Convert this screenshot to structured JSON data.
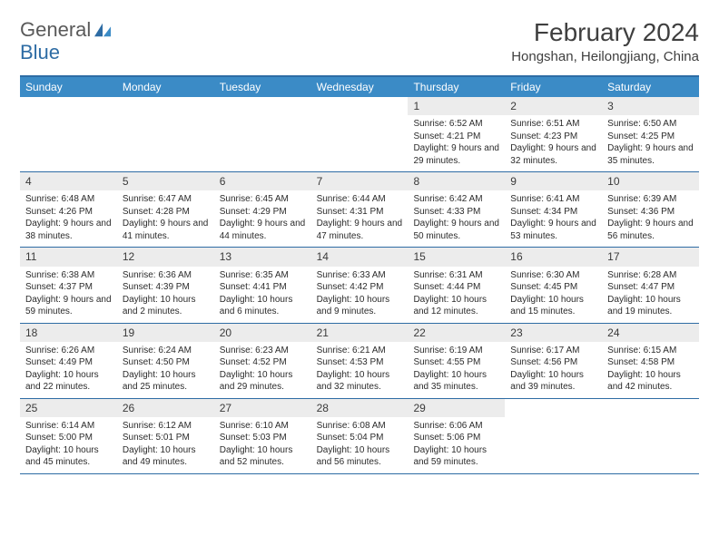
{
  "logo": {
    "word1": "General",
    "word2": "Blue"
  },
  "colors": {
    "header_bar": "#3b8bc6",
    "header_border": "#2e6ca4",
    "day_num_bg": "#ececec",
    "text": "#333333",
    "logo_accent": "#2e6ca4"
  },
  "title": "February 2024",
  "location": "Hongshan, Heilongjiang, China",
  "days_of_week": [
    "Sunday",
    "Monday",
    "Tuesday",
    "Wednesday",
    "Thursday",
    "Friday",
    "Saturday"
  ],
  "weeks": [
    [
      {
        "n": "",
        "sr": "",
        "ss": "",
        "dl": ""
      },
      {
        "n": "",
        "sr": "",
        "ss": "",
        "dl": ""
      },
      {
        "n": "",
        "sr": "",
        "ss": "",
        "dl": ""
      },
      {
        "n": "",
        "sr": "",
        "ss": "",
        "dl": ""
      },
      {
        "n": "1",
        "sr": "Sunrise: 6:52 AM",
        "ss": "Sunset: 4:21 PM",
        "dl": "Daylight: 9 hours and 29 minutes."
      },
      {
        "n": "2",
        "sr": "Sunrise: 6:51 AM",
        "ss": "Sunset: 4:23 PM",
        "dl": "Daylight: 9 hours and 32 minutes."
      },
      {
        "n": "3",
        "sr": "Sunrise: 6:50 AM",
        "ss": "Sunset: 4:25 PM",
        "dl": "Daylight: 9 hours and 35 minutes."
      }
    ],
    [
      {
        "n": "4",
        "sr": "Sunrise: 6:48 AM",
        "ss": "Sunset: 4:26 PM",
        "dl": "Daylight: 9 hours and 38 minutes."
      },
      {
        "n": "5",
        "sr": "Sunrise: 6:47 AM",
        "ss": "Sunset: 4:28 PM",
        "dl": "Daylight: 9 hours and 41 minutes."
      },
      {
        "n": "6",
        "sr": "Sunrise: 6:45 AM",
        "ss": "Sunset: 4:29 PM",
        "dl": "Daylight: 9 hours and 44 minutes."
      },
      {
        "n": "7",
        "sr": "Sunrise: 6:44 AM",
        "ss": "Sunset: 4:31 PM",
        "dl": "Daylight: 9 hours and 47 minutes."
      },
      {
        "n": "8",
        "sr": "Sunrise: 6:42 AM",
        "ss": "Sunset: 4:33 PM",
        "dl": "Daylight: 9 hours and 50 minutes."
      },
      {
        "n": "9",
        "sr": "Sunrise: 6:41 AM",
        "ss": "Sunset: 4:34 PM",
        "dl": "Daylight: 9 hours and 53 minutes."
      },
      {
        "n": "10",
        "sr": "Sunrise: 6:39 AM",
        "ss": "Sunset: 4:36 PM",
        "dl": "Daylight: 9 hours and 56 minutes."
      }
    ],
    [
      {
        "n": "11",
        "sr": "Sunrise: 6:38 AM",
        "ss": "Sunset: 4:37 PM",
        "dl": "Daylight: 9 hours and 59 minutes."
      },
      {
        "n": "12",
        "sr": "Sunrise: 6:36 AM",
        "ss": "Sunset: 4:39 PM",
        "dl": "Daylight: 10 hours and 2 minutes."
      },
      {
        "n": "13",
        "sr": "Sunrise: 6:35 AM",
        "ss": "Sunset: 4:41 PM",
        "dl": "Daylight: 10 hours and 6 minutes."
      },
      {
        "n": "14",
        "sr": "Sunrise: 6:33 AM",
        "ss": "Sunset: 4:42 PM",
        "dl": "Daylight: 10 hours and 9 minutes."
      },
      {
        "n": "15",
        "sr": "Sunrise: 6:31 AM",
        "ss": "Sunset: 4:44 PM",
        "dl": "Daylight: 10 hours and 12 minutes."
      },
      {
        "n": "16",
        "sr": "Sunrise: 6:30 AM",
        "ss": "Sunset: 4:45 PM",
        "dl": "Daylight: 10 hours and 15 minutes."
      },
      {
        "n": "17",
        "sr": "Sunrise: 6:28 AM",
        "ss": "Sunset: 4:47 PM",
        "dl": "Daylight: 10 hours and 19 minutes."
      }
    ],
    [
      {
        "n": "18",
        "sr": "Sunrise: 6:26 AM",
        "ss": "Sunset: 4:49 PM",
        "dl": "Daylight: 10 hours and 22 minutes."
      },
      {
        "n": "19",
        "sr": "Sunrise: 6:24 AM",
        "ss": "Sunset: 4:50 PM",
        "dl": "Daylight: 10 hours and 25 minutes."
      },
      {
        "n": "20",
        "sr": "Sunrise: 6:23 AM",
        "ss": "Sunset: 4:52 PM",
        "dl": "Daylight: 10 hours and 29 minutes."
      },
      {
        "n": "21",
        "sr": "Sunrise: 6:21 AM",
        "ss": "Sunset: 4:53 PM",
        "dl": "Daylight: 10 hours and 32 minutes."
      },
      {
        "n": "22",
        "sr": "Sunrise: 6:19 AM",
        "ss": "Sunset: 4:55 PM",
        "dl": "Daylight: 10 hours and 35 minutes."
      },
      {
        "n": "23",
        "sr": "Sunrise: 6:17 AM",
        "ss": "Sunset: 4:56 PM",
        "dl": "Daylight: 10 hours and 39 minutes."
      },
      {
        "n": "24",
        "sr": "Sunrise: 6:15 AM",
        "ss": "Sunset: 4:58 PM",
        "dl": "Daylight: 10 hours and 42 minutes."
      }
    ],
    [
      {
        "n": "25",
        "sr": "Sunrise: 6:14 AM",
        "ss": "Sunset: 5:00 PM",
        "dl": "Daylight: 10 hours and 45 minutes."
      },
      {
        "n": "26",
        "sr": "Sunrise: 6:12 AM",
        "ss": "Sunset: 5:01 PM",
        "dl": "Daylight: 10 hours and 49 minutes."
      },
      {
        "n": "27",
        "sr": "Sunrise: 6:10 AM",
        "ss": "Sunset: 5:03 PM",
        "dl": "Daylight: 10 hours and 52 minutes."
      },
      {
        "n": "28",
        "sr": "Sunrise: 6:08 AM",
        "ss": "Sunset: 5:04 PM",
        "dl": "Daylight: 10 hours and 56 minutes."
      },
      {
        "n": "29",
        "sr": "Sunrise: 6:06 AM",
        "ss": "Sunset: 5:06 PM",
        "dl": "Daylight: 10 hours and 59 minutes."
      },
      {
        "n": "",
        "sr": "",
        "ss": "",
        "dl": ""
      },
      {
        "n": "",
        "sr": "",
        "ss": "",
        "dl": ""
      }
    ]
  ]
}
